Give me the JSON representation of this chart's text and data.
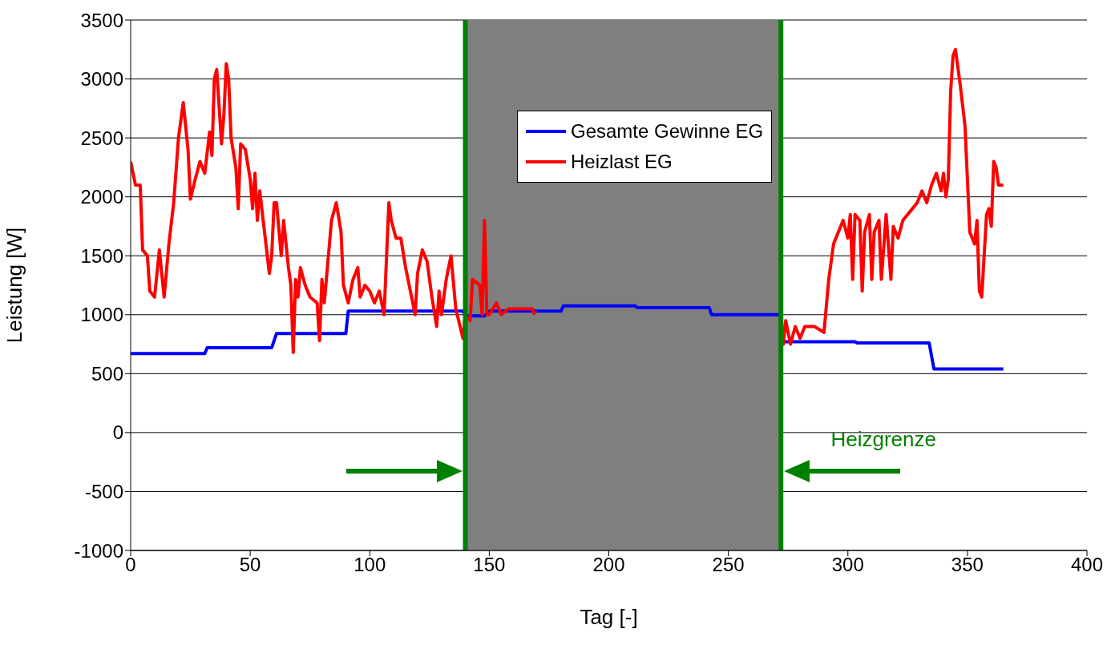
{
  "chart_data": {
    "type": "line",
    "xlabel": "Tag [-]",
    "ylabel": "Leistung [W]",
    "xlim": [
      0,
      400
    ],
    "xticks": [
      0,
      50,
      100,
      150,
      200,
      250,
      300,
      350,
      400
    ],
    "ylim": [
      -1000,
      3500
    ],
    "yticks": [
      -1000,
      -500,
      0,
      500,
      1000,
      1500,
      2000,
      2500,
      3000,
      3500
    ],
    "grid": "y",
    "legend": "top",
    "series": [
      {
        "name": "Gesamte Gewinne EG",
        "color": "#0000ff",
        "x": [
          0,
          31,
          32,
          59,
          61,
          90,
          91,
          139,
          140,
          148,
          150,
          180,
          181,
          211,
          212,
          242,
          243,
          272,
          273,
          303,
          304,
          334,
          336,
          365
        ],
        "values": [
          670,
          670,
          720,
          720,
          840,
          840,
          1030,
          1030,
          990,
          990,
          1030,
          1030,
          1075,
          1075,
          1060,
          1060,
          1000,
          1000,
          770,
          770,
          760,
          760,
          540,
          540
        ]
      },
      {
        "name": "Heizlast EG",
        "color": "#ff0000",
        "x": [
          0,
          2,
          4,
          5,
          7,
          8,
          10,
          12,
          14,
          16,
          18,
          20,
          22,
          24,
          25,
          27,
          29,
          31,
          33,
          34,
          35,
          36,
          38,
          39,
          40,
          41,
          42,
          44,
          45,
          46,
          48,
          50,
          51,
          52,
          53,
          54,
          56,
          58,
          59,
          60,
          61,
          63,
          64,
          66,
          67,
          68,
          69,
          70,
          71,
          73,
          75,
          78,
          79,
          80,
          81,
          84,
          86,
          88,
          89,
          91,
          93,
          95,
          96,
          98,
          100,
          102,
          104,
          106,
          108,
          109,
          111,
          113,
          115,
          117,
          119,
          120,
          122,
          124,
          126,
          128,
          129,
          130,
          132,
          134,
          136,
          139,
          140,
          142,
          143,
          146,
          147,
          148,
          149,
          150,
          153,
          155,
          158,
          168,
          169,
          200,
          272,
          273,
          274,
          276,
          278,
          280,
          282,
          286,
          290,
          292,
          294,
          296,
          298,
          300,
          301,
          302,
          303,
          305,
          306,
          307,
          309,
          310,
          311,
          313,
          314,
          316,
          318,
          319,
          321,
          323,
          325,
          327,
          329,
          331,
          333,
          335,
          337,
          339,
          340,
          341,
          342,
          343,
          344,
          345,
          347,
          349,
          350,
          351,
          353,
          354,
          355,
          356,
          358,
          359,
          360,
          361,
          362,
          363,
          365
        ],
        "values": [
          2300,
          2100,
          2100,
          1550,
          1500,
          1200,
          1150,
          1550,
          1150,
          1600,
          1950,
          2500,
          2800,
          2400,
          1980,
          2150,
          2300,
          2200,
          2550,
          2350,
          3000,
          3080,
          2450,
          2700,
          3130,
          3000,
          2500,
          2250,
          1900,
          2450,
          2400,
          2150,
          1900,
          2200,
          1800,
          2050,
          1700,
          1350,
          1500,
          1950,
          1950,
          1500,
          1800,
          1400,
          1250,
          680,
          1300,
          1150,
          1400,
          1250,
          1150,
          1100,
          780,
          1300,
          1100,
          1800,
          1950,
          1700,
          1250,
          1100,
          1300,
          1400,
          1150,
          1250,
          1200,
          1100,
          1200,
          1000,
          1950,
          1800,
          1650,
          1650,
          1400,
          1200,
          1000,
          1350,
          1550,
          1450,
          1150,
          900,
          1200,
          1000,
          1300,
          1500,
          1050,
          800,
          1000,
          950,
          1300,
          1250,
          1000,
          1800,
          1000,
          1000,
          1100,
          1000,
          1050,
          1050,
          1000,
          null,
          850,
          750,
          950,
          750,
          900,
          800,
          900,
          900,
          850,
          1300,
          1600,
          1700,
          1800,
          1650,
          1850,
          1300,
          1850,
          1800,
          1200,
          1700,
          1850,
          1300,
          1700,
          1800,
          1300,
          1850,
          1300,
          1750,
          1650,
          1800,
          1850,
          1900,
          1950,
          2050,
          1950,
          2100,
          2200,
          2050,
          2200,
          2000,
          2150,
          2900,
          3200,
          3250,
          2950,
          2600,
          2150,
          1700,
          1600,
          1800,
          1200,
          1150,
          1850,
          1900,
          1750,
          2300,
          2250,
          2100,
          2100
        ]
      }
    ],
    "ref_lines": [
      {
        "axis": "x",
        "value": 140,
        "color": "#008000"
      },
      {
        "axis": "x",
        "value": 272,
        "color": "#008000"
      }
    ],
    "bands": [
      {
        "axis": "x",
        "from": 140,
        "to": 272,
        "color": "#7f7f7f"
      }
    ],
    "annotations": [
      "Heizgrenze"
    ]
  }
}
